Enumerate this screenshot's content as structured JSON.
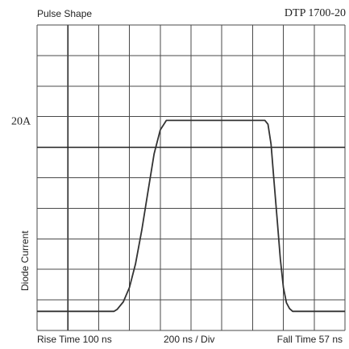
{
  "header": {
    "title": "Pulse Shape",
    "model": "DTP 1700-20"
  },
  "chart_data": {
    "type": "line",
    "title": "Pulse Shape",
    "ylabel": "Diode Current",
    "xlabel": "200 ns / Div",
    "ytick_label": "20A",
    "xlim": [
      0,
      2000
    ],
    "ylim": [
      -2,
      30
    ],
    "grid": true,
    "grid_divisions": {
      "x": 10,
      "y": 10
    },
    "annotations": {
      "rise_time": "Rise Time 100 ns",
      "fall_time": "Fall Time 57 ns"
    },
    "series": [
      {
        "x": [
          0,
          200,
          400,
          500,
          520,
          560,
          600,
          640,
          680,
          720,
          760,
          800,
          840,
          1200,
          1400,
          1480,
          1500,
          1520,
          1540,
          1560,
          1580,
          1600,
          1620,
          1640,
          1660,
          1680,
          1720,
          1800,
          2000
        ],
        "y": [
          0,
          0,
          0,
          0,
          0.2,
          1.0,
          2.5,
          5.0,
          8.5,
          12.5,
          16.5,
          19.0,
          20.0,
          20.0,
          20.0,
          20.0,
          19.6,
          17.5,
          13.5,
          9.5,
          5.5,
          2.5,
          0.9,
          0.3,
          0,
          0,
          0,
          0,
          0
        ]
      }
    ]
  }
}
